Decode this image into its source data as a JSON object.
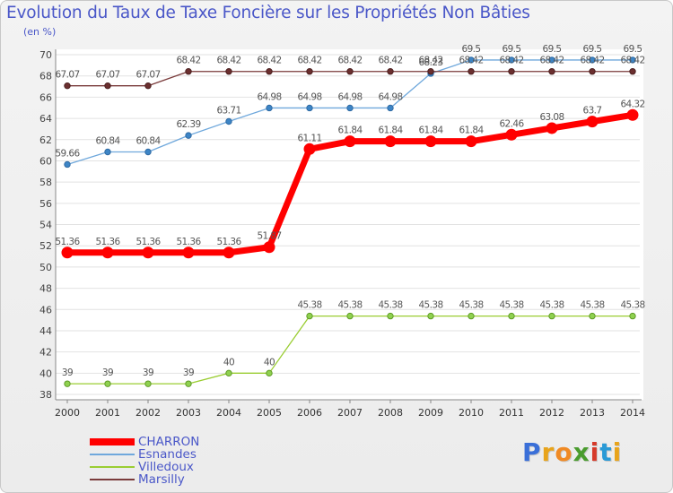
{
  "chart_data": {
    "type": "line",
    "title": "Evolution du Taux de Taxe Foncière sur les Propriétés Non Bâties",
    "ylabel": "(en %)",
    "ylim": [
      38,
      70
    ],
    "y_ticks": [
      "38",
      "40",
      "42",
      "44",
      "46",
      "48",
      "50",
      "52",
      "54",
      "56",
      "58",
      "60",
      "62",
      "64",
      "66",
      "68",
      "70"
    ],
    "categories": [
      "2000",
      "2001",
      "2002",
      "2003",
      "2004",
      "2005",
      "2006",
      "2007",
      "2008",
      "2009",
      "2010",
      "2011",
      "2012",
      "2013",
      "2014"
    ],
    "series": [
      {
        "name": "CHARRON",
        "color": "#ff0000",
        "values": [
          51.36,
          51.36,
          51.36,
          51.36,
          51.36,
          51.87,
          61.11,
          61.84,
          61.84,
          61.84,
          61.84,
          62.46,
          63.08,
          63.7,
          64.32
        ],
        "labels": [
          "51.36",
          "51.36",
          "51.36",
          "51.36",
          "51.36",
          "51.87",
          "61.11",
          "61.84",
          "61.84",
          "61.84",
          "61.84",
          "62.46",
          "63.08",
          "63.7",
          "64.32"
        ]
      },
      {
        "name": "Esnandes",
        "color": "#6fa8dc",
        "values": [
          59.66,
          60.84,
          60.84,
          62.39,
          63.71,
          64.98,
          64.98,
          64.98,
          64.98,
          68.23,
          69.5,
          69.5,
          69.5,
          69.5,
          69.5
        ],
        "labels": [
          "59.66",
          "60.84",
          "60.84",
          "62.39",
          "63.71",
          "64.98",
          "64.98",
          "64.98",
          "64.98",
          "68.23",
          "69.5",
          "69.5",
          "69.5",
          "69.5",
          "69.5"
        ]
      },
      {
        "name": "Villedoux",
        "color": "#9acd32",
        "values": [
          39,
          39,
          39,
          39,
          40,
          40,
          45.38,
          45.38,
          45.38,
          45.38,
          45.38,
          45.38,
          45.38,
          45.38,
          45.38
        ],
        "labels": [
          "39",
          "39",
          "39",
          "39",
          "40",
          "40",
          "45.38",
          "45.38",
          "45.38",
          "45.38",
          "45.38",
          "45.38",
          "45.38",
          "45.38",
          "45.38"
        ]
      },
      {
        "name": "Marsilly",
        "color": "#7a3b3b",
        "values": [
          67.07,
          67.07,
          67.07,
          68.42,
          68.42,
          68.42,
          68.42,
          68.42,
          68.42,
          68.42,
          68.42,
          68.42,
          68.42,
          68.42,
          68.42
        ],
        "labels": [
          "67.07",
          "67.07",
          "67.07",
          "68.42",
          "68.42",
          "68.42",
          "68.42",
          "68.42",
          "68.42",
          "68.42",
          "68.42",
          "68.42",
          "68.42",
          "68.42",
          "68.42"
        ]
      }
    ]
  },
  "brand": {
    "letters": [
      "P",
      "r",
      "o",
      "x",
      "i",
      "t",
      "i"
    ],
    "colors": [
      "#3a6fd8",
      "#e8a41c",
      "#f08a24",
      "#4a9c2e",
      "#d63a2a",
      "#2a9ad6",
      "#e8a41c"
    ]
  }
}
